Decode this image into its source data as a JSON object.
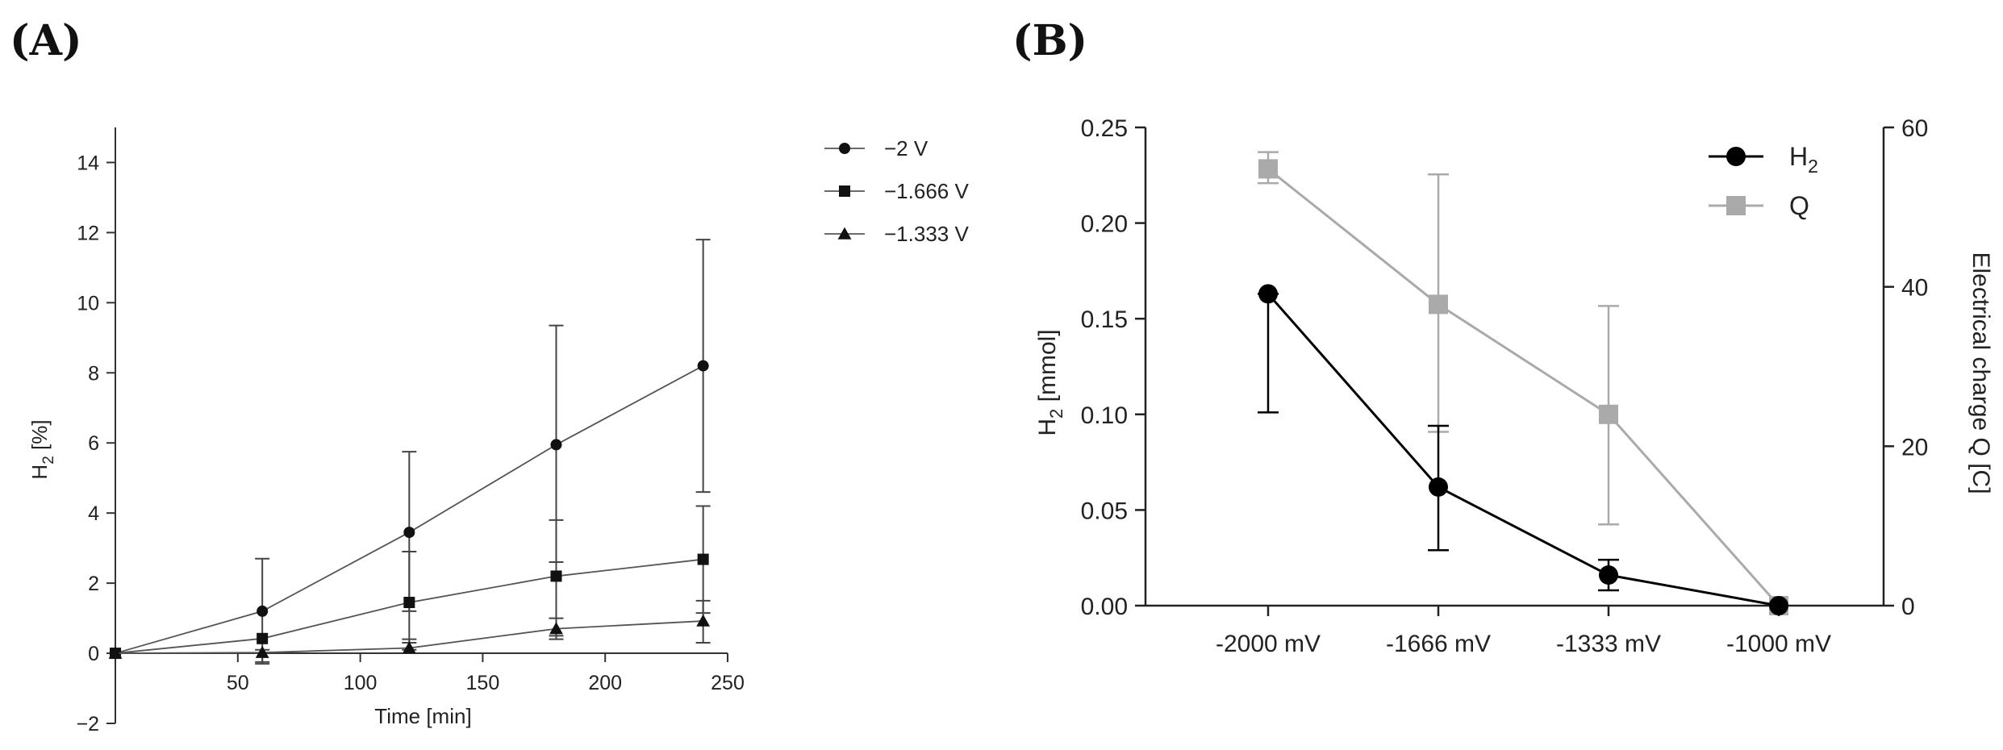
{
  "panels": {
    "a_label": "(A)",
    "b_label": "(B)"
  },
  "chart_data": [
    {
      "type": "line",
      "x": [
        0,
        60,
        120,
        180,
        240
      ],
      "series": [
        {
          "name": "−2 V",
          "marker": "circle",
          "values": [
            0,
            1.2,
            3.45,
            5.95,
            8.2
          ],
          "err_up": [
            0,
            2.7,
            5.75,
            9.35,
            11.8
          ],
          "err_down": [
            0,
            -0.3,
            1.2,
            2.6,
            4.6
          ]
        },
        {
          "name": "−1.666 V",
          "marker": "square",
          "values": [
            0,
            0.42,
            1.45,
            2.2,
            2.68
          ],
          "err_up": [
            0,
            0.42,
            2.9,
            3.8,
            4.2
          ],
          "err_down": [
            0,
            0.42,
            0.3,
            0.5,
            1.15
          ]
        },
        {
          "name": "−1.333 V",
          "marker": "triangle",
          "values": [
            0,
            0.02,
            0.15,
            0.7,
            0.92
          ],
          "err_up": [
            0,
            0.1,
            0.4,
            1.0,
            1.5
          ],
          "err_down": [
            0,
            -0.25,
            0.1,
            0.4,
            0.3
          ]
        }
      ],
      "xlabel": "Time [min]",
      "ylabel_main": "H",
      "ylabel_sub": "2",
      "ylabel_tail": " [%]",
      "xlim": [
        0,
        250
      ],
      "ylim": [
        -2,
        15
      ],
      "xticks": [
        50,
        100,
        150,
        200,
        250
      ],
      "yticks": [
        -2,
        0,
        2,
        4,
        6,
        8,
        10,
        12,
        14
      ],
      "ytick_labels": [
        "−2",
        "0",
        "2",
        "4",
        "6",
        "8",
        "10",
        "12",
        "14"
      ],
      "legend": "top-right outside"
    },
    {
      "type": "line",
      "categories": [
        "-2000 mV",
        "-1666 mV",
        "-1333 mV",
        "-1000 mV"
      ],
      "series": [
        {
          "name": "H",
          "name_sub": "2",
          "axis": "left",
          "color": "#000000",
          "marker": "circle",
          "values": [
            0.163,
            0.062,
            0.016,
            0.0
          ],
          "err_up": [
            0.163,
            0.094,
            0.024,
            0.0
          ],
          "err_down": [
            0.101,
            0.029,
            0.008,
            0.0
          ]
        },
        {
          "name": "Q",
          "axis": "right",
          "color": "#aaaaaa",
          "marker": "square",
          "values": [
            54.8,
            37.8,
            24.0,
            0.0
          ],
          "err_up": [
            56.9,
            54.1,
            37.6,
            0.0
          ],
          "err_down": [
            53.0,
            21.8,
            10.2,
            0.0
          ]
        }
      ],
      "ylabel_left_main": "H",
      "ylabel_left_sub": "2",
      "ylabel_left_tail": " [mmol]",
      "ylabel_right": "Electrical charge Q [C]",
      "ylim_left": [
        0,
        0.25
      ],
      "ylim_right": [
        0,
        60
      ],
      "yticks_left": [
        0.0,
        0.05,
        0.1,
        0.15,
        0.2,
        0.25
      ],
      "ytick_labels_left": [
        "0.00",
        "0.05",
        "0.10",
        "0.15",
        "0.20",
        "0.25"
      ],
      "yticks_right": [
        0,
        20,
        40,
        60
      ],
      "ytick_labels_right": [
        "0",
        "20",
        "40",
        "60"
      ],
      "legend": "top-right"
    }
  ]
}
